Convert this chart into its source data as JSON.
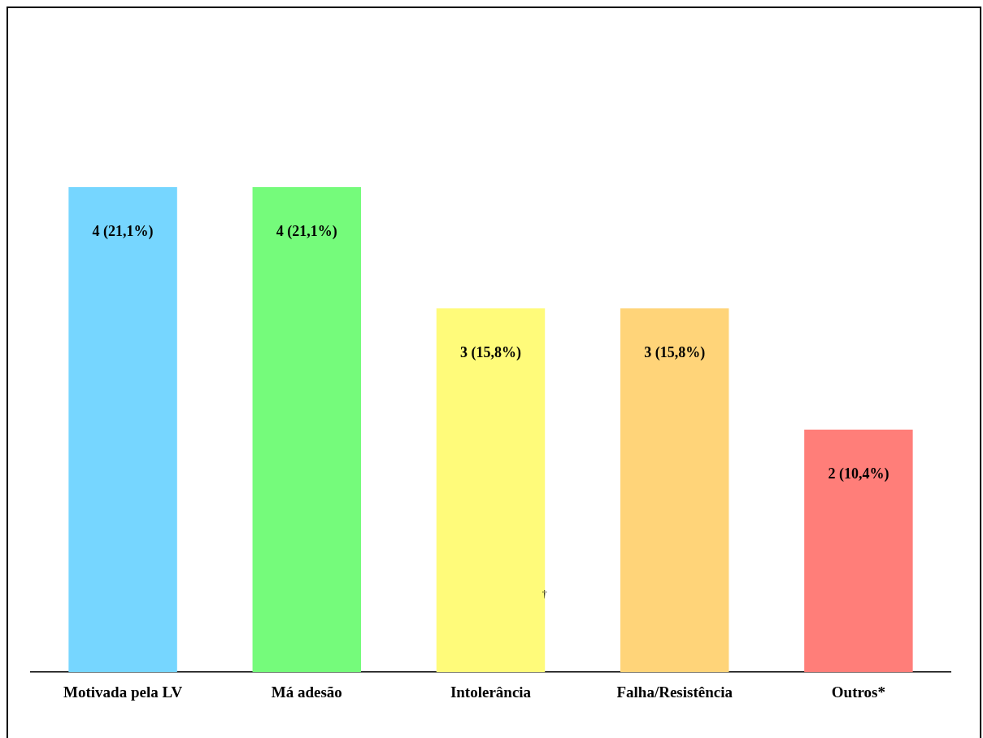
{
  "chart_data": {
    "type": "bar",
    "categories": [
      "Motivada pela LV",
      "Má adesão",
      "Intolerância",
      "Falha/Resistência",
      "Outros*"
    ],
    "values": [
      4,
      4,
      3,
      3,
      2
    ],
    "colors": [
      "#76d6ff",
      "#75fb7b",
      "#fffb7a",
      "#ffd479",
      "#ff7e79"
    ],
    "value_labels": [
      "4 (21,1%)",
      "4 (21,1%)",
      "3 (15,8%)",
      "3 (15,8%)",
      "2 (10,4%)"
    ],
    "annotations": [
      "†"
    ],
    "grid": false,
    "legend": false
  }
}
